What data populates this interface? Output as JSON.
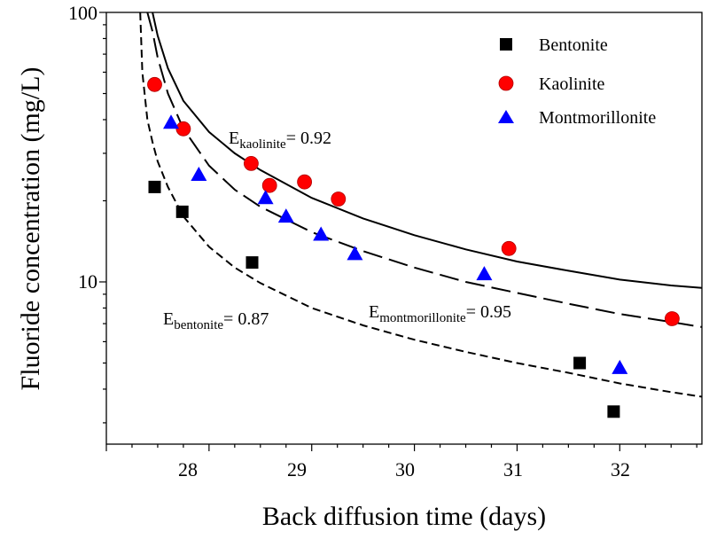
{
  "chart_data": {
    "type": "scatter",
    "xlabel": "Back diffusion time (days)",
    "ylabel": "Fluoride concentration (mg/L)",
    "xlim": [
      27.0,
      32.8
    ],
    "ylim": [
      2.5,
      100
    ],
    "yscale": "log",
    "xticks": [
      28,
      29,
      30,
      31,
      32
    ],
    "yticks": [
      10,
      100
    ],
    "xtick_labels": [
      "28",
      "29",
      "30",
      "31",
      "32"
    ],
    "ytick_labels": [
      "10",
      "100"
    ],
    "legend_position": "top-right",
    "series": [
      {
        "name": "Bentonite",
        "marker": "square",
        "color": "#000000",
        "x": [
          27.47,
          27.74,
          28.42,
          31.61,
          31.94
        ],
        "y": [
          22.5,
          18.2,
          11.8,
          5.0,
          3.3
        ]
      },
      {
        "name": "Kaolinite",
        "marker": "circle",
        "color": "#ff0000",
        "x": [
          27.47,
          27.75,
          28.41,
          28.59,
          28.93,
          29.26,
          30.92,
          32.51
        ],
        "y": [
          54.0,
          37.0,
          27.5,
          22.8,
          23.5,
          20.3,
          13.3,
          7.3
        ]
      },
      {
        "name": "Montmorillonite",
        "marker": "triangle",
        "color": "#0000ff",
        "x": [
          27.63,
          27.9,
          28.55,
          28.75,
          29.09,
          29.42,
          30.68,
          32.0
        ],
        "y": [
          39.0,
          25.0,
          20.5,
          17.5,
          15.0,
          12.7,
          10.7,
          4.8
        ]
      }
    ],
    "fits": [
      {
        "name": "Kaolinite fit",
        "style": "solid",
        "x": [
          27.45,
          27.5,
          27.6,
          27.75,
          28.0,
          28.25,
          28.5,
          29.0,
          29.5,
          30.0,
          30.5,
          31.0,
          31.5,
          32.0,
          32.5,
          32.8
        ],
        "y": [
          100,
          82,
          62,
          47,
          36,
          30,
          26,
          20.5,
          17.2,
          14.9,
          13.2,
          11.9,
          11.0,
          10.2,
          9.7,
          9.5
        ]
      },
      {
        "name": "Montmorillonite fit",
        "style": "long-dash",
        "x": [
          27.4,
          27.45,
          27.5,
          27.6,
          27.75,
          28.0,
          28.25,
          28.5,
          29.0,
          29.5,
          30.0,
          30.5,
          31.0,
          31.5,
          32.0,
          32.5,
          32.8
        ],
        "y": [
          100,
          85,
          68,
          50,
          37,
          27,
          22,
          19,
          15.3,
          13.0,
          11.3,
          10.0,
          9.1,
          8.3,
          7.6,
          7.1,
          6.8
        ]
      },
      {
        "name": "Bentonite fit",
        "style": "short-dash",
        "x": [
          27.33,
          27.35,
          27.4,
          27.45,
          27.5,
          27.6,
          27.75,
          28.0,
          28.25,
          28.5,
          29.0,
          29.5,
          30.0,
          30.5,
          31.0,
          31.5,
          32.0,
          32.5,
          32.8
        ],
        "y": [
          100,
          60,
          40,
          33,
          28,
          22.5,
          17.5,
          13.5,
          11.3,
          9.9,
          8.0,
          6.9,
          6.1,
          5.5,
          5.0,
          4.6,
          4.2,
          3.9,
          3.75
        ]
      }
    ],
    "annotations": [
      {
        "base": "E",
        "sub": "kaolinite",
        "rest": "= 0.92"
      },
      {
        "base": "E",
        "sub": "bentonite",
        "rest": "= 0.87"
      },
      {
        "base": "E",
        "sub": "montmorillonite",
        "rest": "= 0.95"
      }
    ]
  }
}
